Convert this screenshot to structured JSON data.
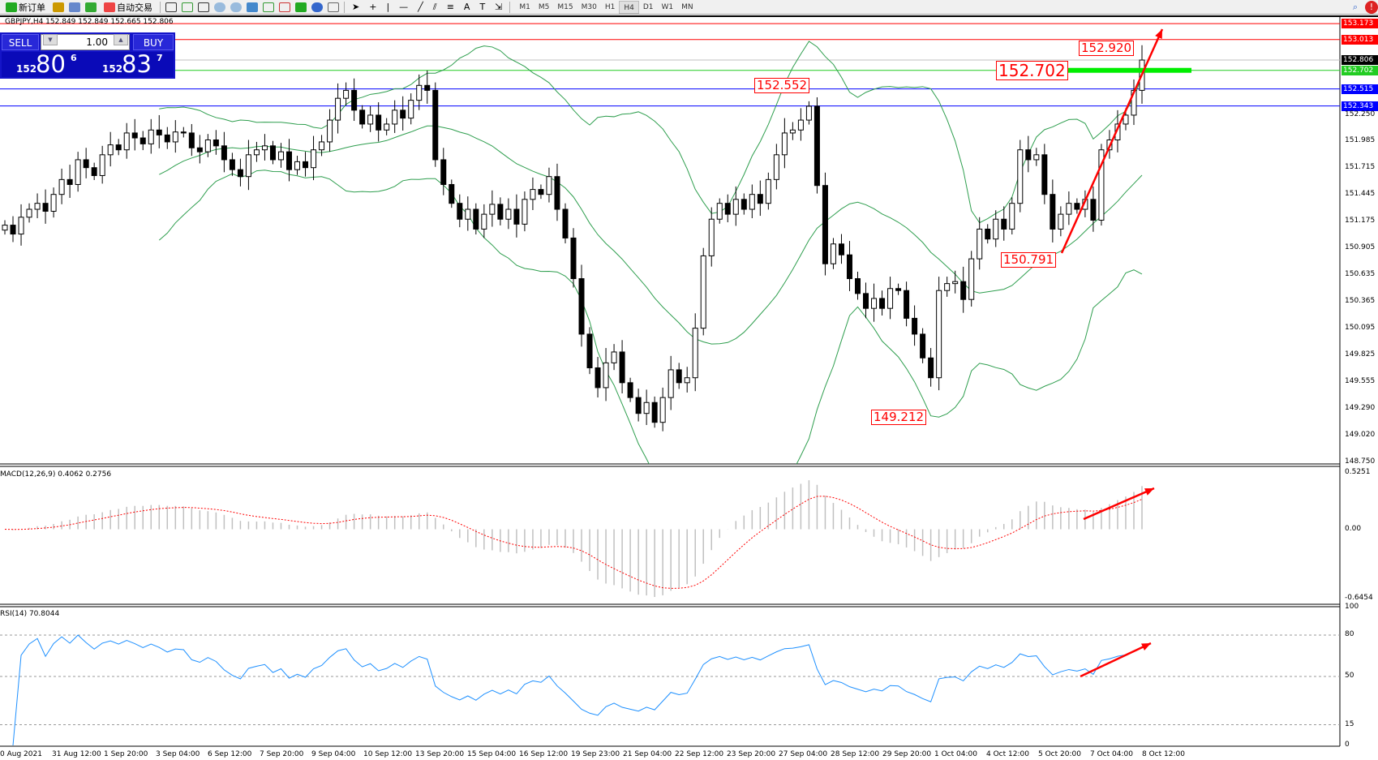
{
  "toolbar": {
    "new_order": "新订单",
    "auto_trading": "自动交易",
    "timeframes": [
      "M1",
      "M5",
      "M15",
      "M30",
      "H1",
      "H4",
      "D1",
      "W1",
      "MN"
    ],
    "active_timeframe": "H4"
  },
  "chart_title": "GBPJPY,H4  152.849 152.849 152.665 152.806",
  "trade_panel": {
    "sell": "SELL",
    "buy": "BUY",
    "lot": "1.00",
    "bid_big": "152",
    "bid_main": "80",
    "bid_small": "6",
    "ask_big": "152",
    "ask_main": "83",
    "ask_small": "7"
  },
  "price_tags": [
    {
      "text": "153.173",
      "color": "#ff0000"
    },
    {
      "text": "153.013",
      "color": "#ff0000"
    },
    {
      "text": "152.806",
      "color": "#000000"
    },
    {
      "text": "152.702",
      "color": "#22cc22"
    },
    {
      "text": "152.515",
      "color": "#0000ff"
    },
    {
      "text": "152.343",
      "color": "#0000ff"
    }
  ],
  "annotations": [
    "152.920",
    "152.702",
    "152.552",
    "150.791",
    "149.212"
  ],
  "colors": {
    "bull": "#ffffff",
    "bear": "#000000",
    "bands": "#2e9e4e",
    "macd_hist": "#c0c0c0",
    "macd_signal": "#ff0000",
    "rsi": "#1e90ff",
    "arrow": "#ff0000"
  },
  "chart_data": {
    "type": "candlestick",
    "symbol": "GBPJPY",
    "timeframe": "H4",
    "closes": [
      151.14,
      151.05,
      151.22,
      151.3,
      151.36,
      151.28,
      151.45,
      151.6,
      151.55,
      151.8,
      151.72,
      151.64,
      151.85,
      151.95,
      151.9,
      152.07,
      152.02,
      151.96,
      152.1,
      152.05,
      151.98,
      152.08,
      152.07,
      151.92,
      151.88,
      152.0,
      151.94,
      151.8,
      151.7,
      151.63,
      151.85,
      151.9,
      151.94,
      151.8,
      151.88,
      151.7,
      151.78,
      151.72,
      151.9,
      151.98,
      152.2,
      152.42,
      152.5,
      152.3,
      152.16,
      152.25,
      152.1,
      152.16,
      152.3,
      152.22,
      152.4,
      152.55,
      152.5,
      151.8,
      151.55,
      151.36,
      151.2,
      151.3,
      151.1,
      151.25,
      151.35,
      151.2,
      151.3,
      151.15,
      151.4,
      151.5,
      151.45,
      151.63,
      151.3,
      151.01,
      150.6,
      150.04,
      149.7,
      149.5,
      149.75,
      149.86,
      149.55,
      149.4,
      149.24,
      149.35,
      149.15,
      149.4,
      149.68,
      149.55,
      149.6,
      150.1,
      150.83,
      151.2,
      151.36,
      151.25,
      151.4,
      151.3,
      151.45,
      151.36,
      151.6,
      151.85,
      152.07,
      152.1,
      152.2,
      152.34,
      151.54,
      150.75,
      150.95,
      150.84,
      150.6,
      150.45,
      150.3,
      150.4,
      150.3,
      150.5,
      150.48,
      150.2,
      150.04,
      149.8,
      149.6,
      150.48,
      150.55,
      150.57,
      150.39,
      150.8,
      151.1,
      151.0,
      151.2,
      151.1,
      151.36,
      151.9,
      151.8,
      151.85,
      151.45,
      151.1,
      151.25,
      151.36,
      151.3,
      151.4,
      151.19,
      151.9,
      152.0,
      152.16,
      152.25,
      152.5,
      152.806
    ],
    "price_axis": [
      "152.250",
      "151.985",
      "151.715",
      "151.445",
      "151.175",
      "150.905",
      "150.635",
      "150.365",
      "150.095",
      "149.825",
      "149.555",
      "149.290",
      "149.020",
      "148.750"
    ],
    "ylim": [
      148.73,
      153.24
    ],
    "horizontal_lines": [
      153.173,
      153.013,
      152.806,
      152.702,
      152.515,
      152.343
    ],
    "indicators": {
      "bollinger": "20,2",
      "macd": {
        "label": "MACD(12,26,9) 0.4062 0.2756",
        "axis": [
          "0.5251",
          "0.00",
          "-0.6454"
        ],
        "ylim": [
          -0.6454,
          0.5251
        ]
      },
      "rsi": {
        "label": "RSI(14) 70.8044",
        "axis": [
          "100",
          "80",
          "50",
          "15",
          "0"
        ],
        "levels": [
          80,
          50,
          15
        ]
      }
    },
    "time_axis": [
      "0 Aug 2021",
      "31 Aug 12:00",
      "1 Sep 20:00",
      "3 Sep 04:00",
      "6 Sep 12:00",
      "7 Sep 20:00",
      "9 Sep 04:00",
      "10 Sep 12:00",
      "13 Sep 20:00",
      "15 Sep 04:00",
      "16 Sep 12:00",
      "19 Sep 23:00",
      "21 Sep 04:00",
      "22 Sep 12:00",
      "23 Sep 20:00",
      "27 Sep 04:00",
      "28 Sep 12:00",
      "29 Sep 20:00",
      "1 Oct 04:00",
      "4 Oct 12:00",
      "5 Oct 20:00",
      "7 Oct 04:00",
      "8 Oct 12:00"
    ]
  }
}
